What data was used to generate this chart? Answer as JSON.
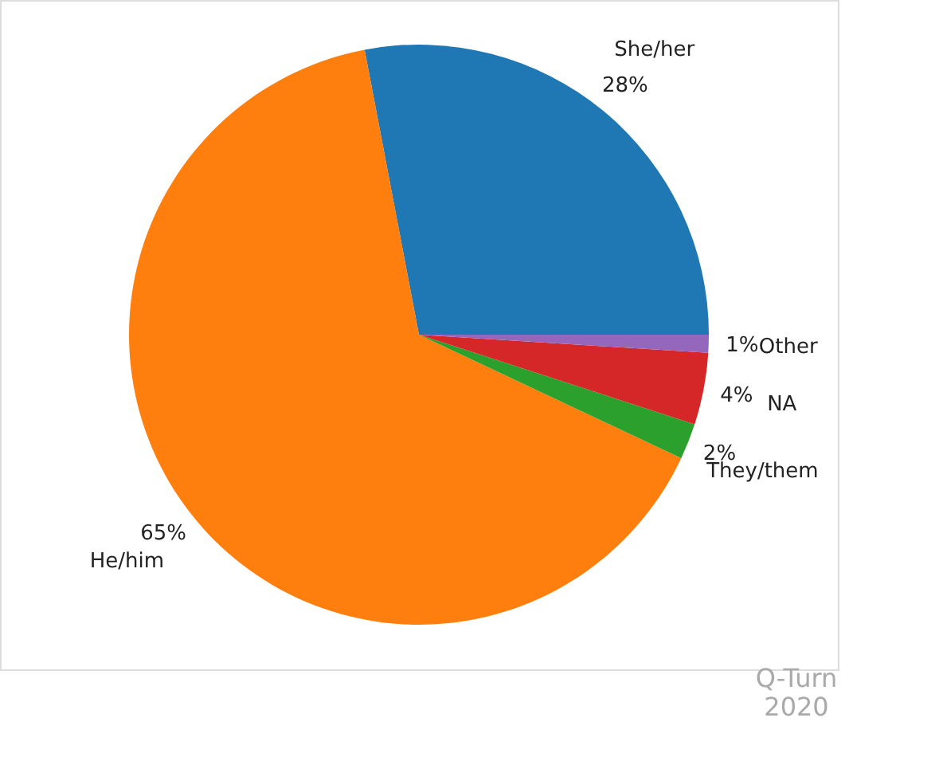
{
  "chart_data": {
    "type": "pie",
    "categories": [
      "She/her",
      "He/him",
      "They/them",
      "NA",
      "Other"
    ],
    "values": [
      28,
      65,
      2,
      4,
      1
    ],
    "colors": [
      "#1f77b4",
      "#ff7f0e",
      "#2ca02c",
      "#d62728",
      "#9467bd"
    ],
    "value_labels": [
      "28%",
      "65%",
      "2%",
      "4%",
      "1%"
    ],
    "annotations": [
      "Q-Turn 2020"
    ]
  }
}
